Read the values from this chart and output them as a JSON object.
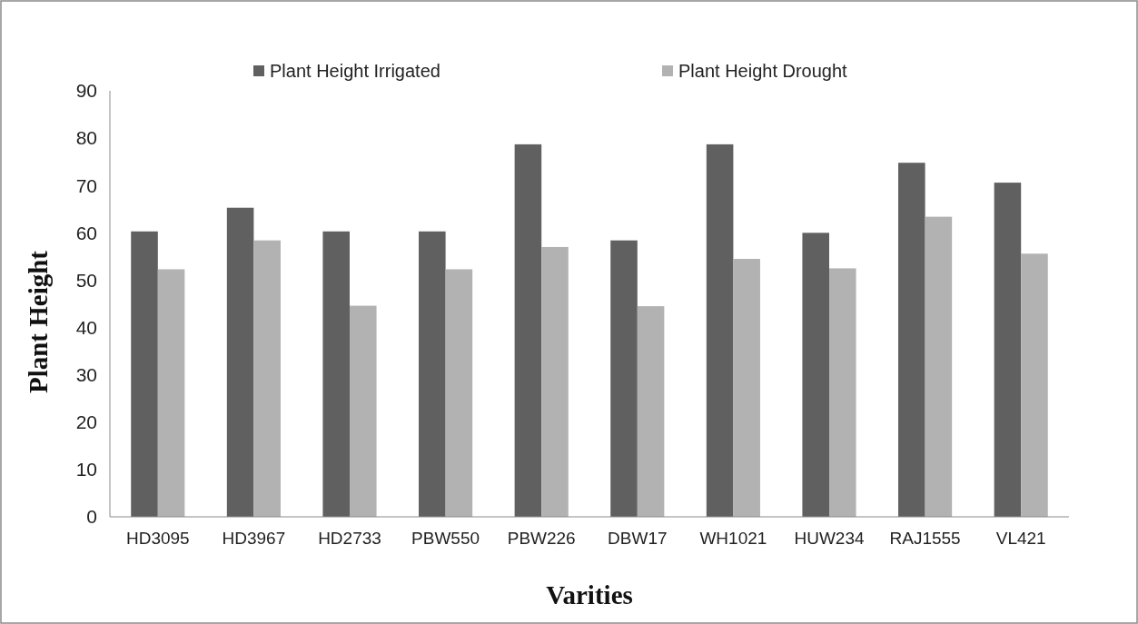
{
  "chart_data": {
    "type": "bar",
    "xlabel": "Varities",
    "ylabel": "Plant Height",
    "categories": [
      "HD3095",
      "HD3967",
      "HD2733",
      "PBW550",
      "PBW226",
      "DBW17",
      "WH1021",
      "HUW234",
      "RAJ1555",
      "VL421"
    ],
    "series": [
      {
        "name": "Plant Height Irrigated",
        "color": "#606060",
        "values": [
          60.3,
          65.3,
          60.3,
          60.3,
          78.7,
          58.4,
          78.7,
          60.0,
          74.8,
          70.6
        ]
      },
      {
        "name": "Plant Height Drought",
        "color": "#b2b2b2",
        "values": [
          52.3,
          58.4,
          44.6,
          52.3,
          57.0,
          44.5,
          54.5,
          52.5,
          63.4,
          55.6
        ]
      }
    ],
    "ylim": [
      0,
      90
    ],
    "yticks": [
      0,
      10,
      20,
      30,
      40,
      50,
      60,
      70,
      80,
      90
    ],
    "grid": false,
    "legend": "top"
  }
}
